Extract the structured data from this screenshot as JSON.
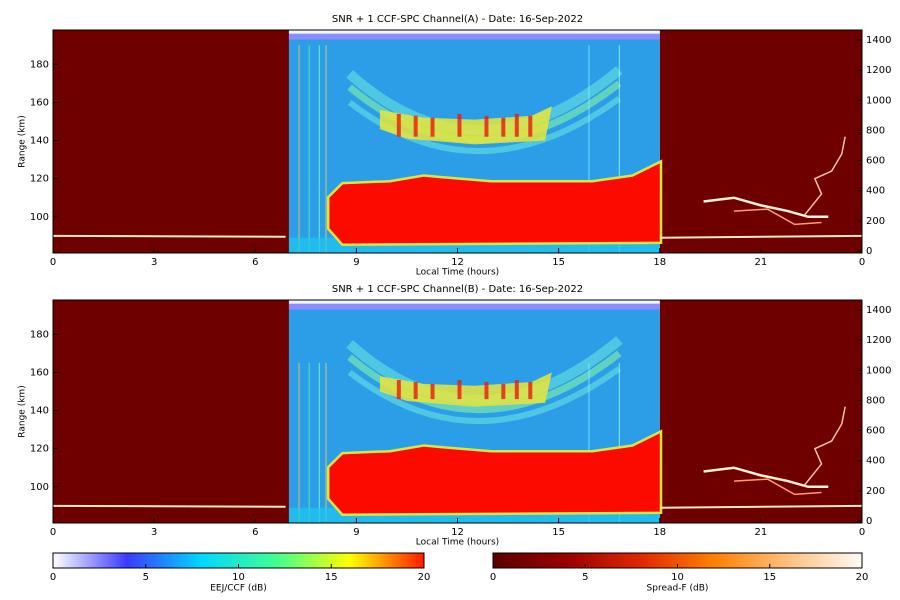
{
  "chart_data": [
    {
      "type": "heatmap",
      "title": "SNR + 1 CCF-SPC Channel(A) - Date: 16-Sep-2022",
      "x_label": "Local Time (hours)",
      "y_label": "Range (km)",
      "xlim": [
        0,
        24
      ],
      "xticks": [
        0,
        3,
        6,
        9,
        12,
        15,
        18,
        21,
        {
          "value": 24,
          "label": "0"
        }
      ],
      "ylim": [
        81,
        198
      ],
      "yticks": [
        100,
        120,
        140,
        160,
        180
      ],
      "y2lim": [
        -13,
        1466
      ],
      "y2ticks": [
        0,
        200,
        400,
        600,
        800,
        1000,
        1200,
        1400
      ]
    },
    {
      "type": "heatmap",
      "title": "SNR + 1 CCF-SPC Channel(B) - Date: 16-Sep-2022",
      "x_label": "Local Time (hours)",
      "y_label": "Range (km)",
      "xlim": [
        0,
        24
      ],
      "xticks": [
        0,
        3,
        6,
        9,
        12,
        15,
        18,
        21,
        {
          "value": 24,
          "label": "0"
        }
      ],
      "ylim": [
        81,
        198
      ],
      "yticks": [
        100,
        120,
        140,
        160,
        180
      ],
      "y2lim": [
        -13,
        1466
      ],
      "y2ticks": [
        0,
        200,
        400,
        600,
        800,
        1000,
        1200,
        1400
      ]
    },
    {
      "type": "colorbar",
      "x_label": "EEJ/CCF (dB)",
      "xlim": [
        0,
        20
      ],
      "xticks": [
        0,
        5,
        10,
        15,
        20
      ],
      "colors": [
        "#ffffff",
        "#3a3aff",
        "#00d8ff",
        "#40ff90",
        "#ffff00",
        "#ff1a00"
      ]
    },
    {
      "type": "colorbar",
      "x_label": "Spread-F (dB)",
      "xlim": [
        0,
        20
      ],
      "xticks": [
        0,
        5,
        10,
        15,
        20
      ],
      "colors": [
        "#5a0000",
        "#9a0000",
        "#e02800",
        "#ff8000",
        "#ffc080",
        "#fffaf4"
      ]
    }
  ]
}
